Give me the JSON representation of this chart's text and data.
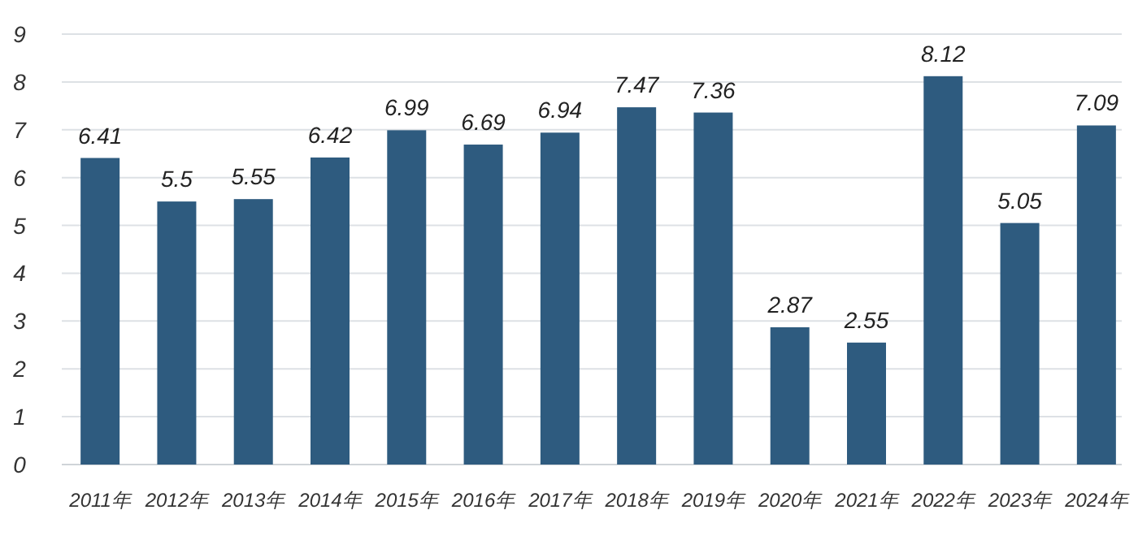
{
  "chart_data": {
    "type": "bar",
    "categories": [
      "2011年",
      "2012年",
      "2013年",
      "2014年",
      "2015年",
      "2016年",
      "2017年",
      "2018年",
      "2019年",
      "2020年",
      "2021年",
      "2022年",
      "2023年",
      "2024年"
    ],
    "values": [
      6.41,
      5.5,
      5.55,
      6.42,
      6.99,
      6.69,
      6.94,
      7.47,
      7.36,
      2.87,
      2.55,
      8.12,
      5.05,
      7.09
    ],
    "color": "#2e5b7f",
    "ylim": [
      0,
      9
    ],
    "yticks": [
      0,
      1,
      2,
      3,
      4,
      5,
      6,
      7,
      8,
      9
    ],
    "grid": "y",
    "data_labels": true
  }
}
